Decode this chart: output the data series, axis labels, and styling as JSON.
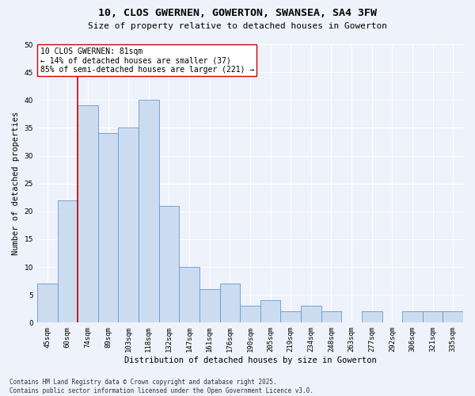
{
  "title": "10, CLOS GWERNEN, GOWERTON, SWANSEA, SA4 3FW",
  "subtitle": "Size of property relative to detached houses in Gowerton",
  "xlabel": "Distribution of detached houses by size in Gowerton",
  "ylabel": "Number of detached properties",
  "categories": [
    "45sqm",
    "60sqm",
    "74sqm",
    "89sqm",
    "103sqm",
    "118sqm",
    "132sqm",
    "147sqm",
    "161sqm",
    "176sqm",
    "190sqm",
    "205sqm",
    "219sqm",
    "234sqm",
    "248sqm",
    "263sqm",
    "277sqm",
    "292sqm",
    "306sqm",
    "321sqm",
    "335sqm"
  ],
  "values": [
    7,
    22,
    39,
    34,
    35,
    40,
    21,
    10,
    6,
    7,
    3,
    4,
    2,
    3,
    2,
    0,
    2,
    0,
    2,
    2,
    2
  ],
  "bar_color": "#ccdcf0",
  "bar_edge_color": "#6699cc",
  "vline_x_index": 2,
  "vline_color": "#cc0000",
  "annotation_text": "10 CLOS GWERNEN: 81sqm\n← 14% of detached houses are smaller (37)\n85% of semi-detached houses are larger (221) →",
  "annotation_box_color": "#ffffff",
  "annotation_box_edge_color": "#cc0000",
  "ylim": [
    0,
    50
  ],
  "yticks": [
    0,
    5,
    10,
    15,
    20,
    25,
    30,
    35,
    40,
    45,
    50
  ],
  "background_color": "#eef2fa",
  "grid_color": "#ffffff",
  "footer_line1": "Contains HM Land Registry data © Crown copyright and database right 2025.",
  "footer_line2": "Contains public sector information licensed under the Open Government Licence v3.0.",
  "title_fontsize": 9.5,
  "subtitle_fontsize": 8.0,
  "axis_label_fontsize": 7.5,
  "tick_fontsize": 6.5,
  "annotation_fontsize": 7.0,
  "footer_fontsize": 5.5
}
